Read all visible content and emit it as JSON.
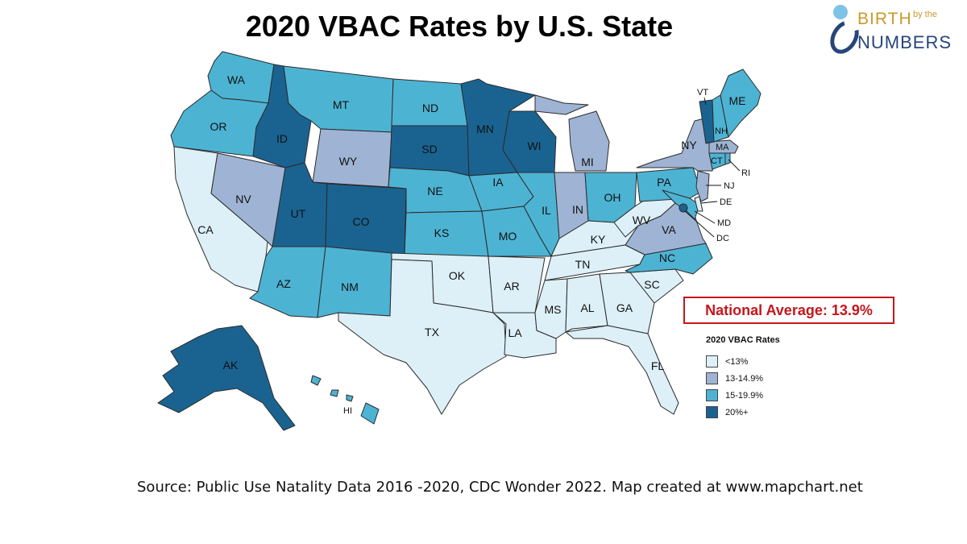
{
  "title": "2020 VBAC Rates by U.S. State",
  "logo": {
    "word1": "BIRTH",
    "word2": "by the",
    "word3": "NUMBERS"
  },
  "national_average": "National Average: 13.9%",
  "source": "Source: Public Use Natality Data 2016 -2020, CDC Wonder 2022. Map created at www.mapchart.net",
  "legend": {
    "title": "2020 VBAC Rates",
    "items": [
      {
        "label": "<13%",
        "color": "#ddf0f8"
      },
      {
        "label": "13-14.9%",
        "color": "#9fb4d4"
      },
      {
        "label": "15-19.9%",
        "color": "#4db3d3"
      },
      {
        "label": "20%+",
        "color": "#1a6391"
      }
    ]
  },
  "map_data": {
    "categories": [
      "<13%",
      "13-14.9%",
      "15-19.9%",
      "20%+"
    ],
    "states": [
      {
        "abbr": "WA",
        "category": "15-19.9%"
      },
      {
        "abbr": "OR",
        "category": "15-19.9%"
      },
      {
        "abbr": "CA",
        "category": "<13%"
      },
      {
        "abbr": "NV",
        "category": "13-14.9%"
      },
      {
        "abbr": "ID",
        "category": "20%+"
      },
      {
        "abbr": "MT",
        "category": "15-19.9%"
      },
      {
        "abbr": "WY",
        "category": "13-14.9%"
      },
      {
        "abbr": "UT",
        "category": "20%+"
      },
      {
        "abbr": "CO",
        "category": "20%+"
      },
      {
        "abbr": "AZ",
        "category": "15-19.9%"
      },
      {
        "abbr": "NM",
        "category": "15-19.9%"
      },
      {
        "abbr": "ND",
        "category": "15-19.9%"
      },
      {
        "abbr": "SD",
        "category": "20%+"
      },
      {
        "abbr": "NE",
        "category": "15-19.9%"
      },
      {
        "abbr": "KS",
        "category": "15-19.9%"
      },
      {
        "abbr": "OK",
        "category": "<13%"
      },
      {
        "abbr": "TX",
        "category": "<13%"
      },
      {
        "abbr": "MN",
        "category": "20%+"
      },
      {
        "abbr": "IA",
        "category": "15-19.9%"
      },
      {
        "abbr": "MO",
        "category": "15-19.9%"
      },
      {
        "abbr": "AR",
        "category": "<13%"
      },
      {
        "abbr": "LA",
        "category": "<13%"
      },
      {
        "abbr": "WI",
        "category": "20%+"
      },
      {
        "abbr": "IL",
        "category": "15-19.9%"
      },
      {
        "abbr": "MI",
        "category": "13-14.9%"
      },
      {
        "abbr": "IN",
        "category": "13-14.9%"
      },
      {
        "abbr": "OH",
        "category": "15-19.9%"
      },
      {
        "abbr": "KY",
        "category": "<13%"
      },
      {
        "abbr": "TN",
        "category": "<13%"
      },
      {
        "abbr": "MS",
        "category": "<13%"
      },
      {
        "abbr": "AL",
        "category": "<13%"
      },
      {
        "abbr": "GA",
        "category": "<13%"
      },
      {
        "abbr": "FL",
        "category": "<13%"
      },
      {
        "abbr": "SC",
        "category": "<13%"
      },
      {
        "abbr": "NC",
        "category": "15-19.9%"
      },
      {
        "abbr": "VA",
        "category": "13-14.9%"
      },
      {
        "abbr": "WV",
        "category": "<13%"
      },
      {
        "abbr": "MD",
        "category": "15-19.9%"
      },
      {
        "abbr": "DC",
        "category": "20%+"
      },
      {
        "abbr": "DE",
        "category": "<13%"
      },
      {
        "abbr": "PA",
        "category": "15-19.9%"
      },
      {
        "abbr": "NJ",
        "category": "13-14.9%"
      },
      {
        "abbr": "NY",
        "category": "13-14.9%"
      },
      {
        "abbr": "CT",
        "category": "15-19.9%"
      },
      {
        "abbr": "RI",
        "category": "15-19.9%"
      },
      {
        "abbr": "MA",
        "category": "13-14.9%"
      },
      {
        "abbr": "VT",
        "category": "20%+"
      },
      {
        "abbr": "NH",
        "category": "15-19.9%"
      },
      {
        "abbr": "ME",
        "category": "15-19.9%"
      },
      {
        "abbr": "AK",
        "category": "20%+"
      },
      {
        "abbr": "HI",
        "category": "15-19.9%"
      }
    ]
  }
}
